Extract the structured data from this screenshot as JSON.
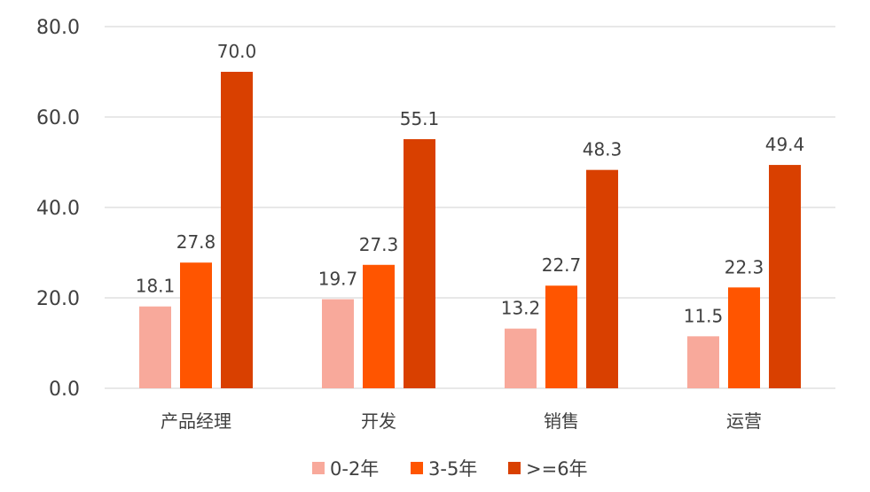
{
  "chart_data": {
    "type": "bar",
    "categories": [
      "产品经理",
      "开发",
      "销售",
      "运营"
    ],
    "series": [
      {
        "name": "0-2年",
        "values": [
          18.1,
          19.7,
          13.2,
          11.5
        ],
        "color": "#F8A99B"
      },
      {
        "name": "3-5年",
        "values": [
          27.8,
          27.3,
          22.7,
          22.3
        ],
        "color": "#FF5500"
      },
      {
        "name": ">=6年",
        "values": [
          70.0,
          55.1,
          48.3,
          49.4
        ],
        "color": "#D94000"
      }
    ],
    "y_ticks": [
      "0.0",
      "20.0",
      "40.0",
      "60.0",
      "80.0"
    ],
    "ylim": [
      0,
      80
    ],
    "grid": true,
    "legend_position": "bottom",
    "data_labels": true
  }
}
